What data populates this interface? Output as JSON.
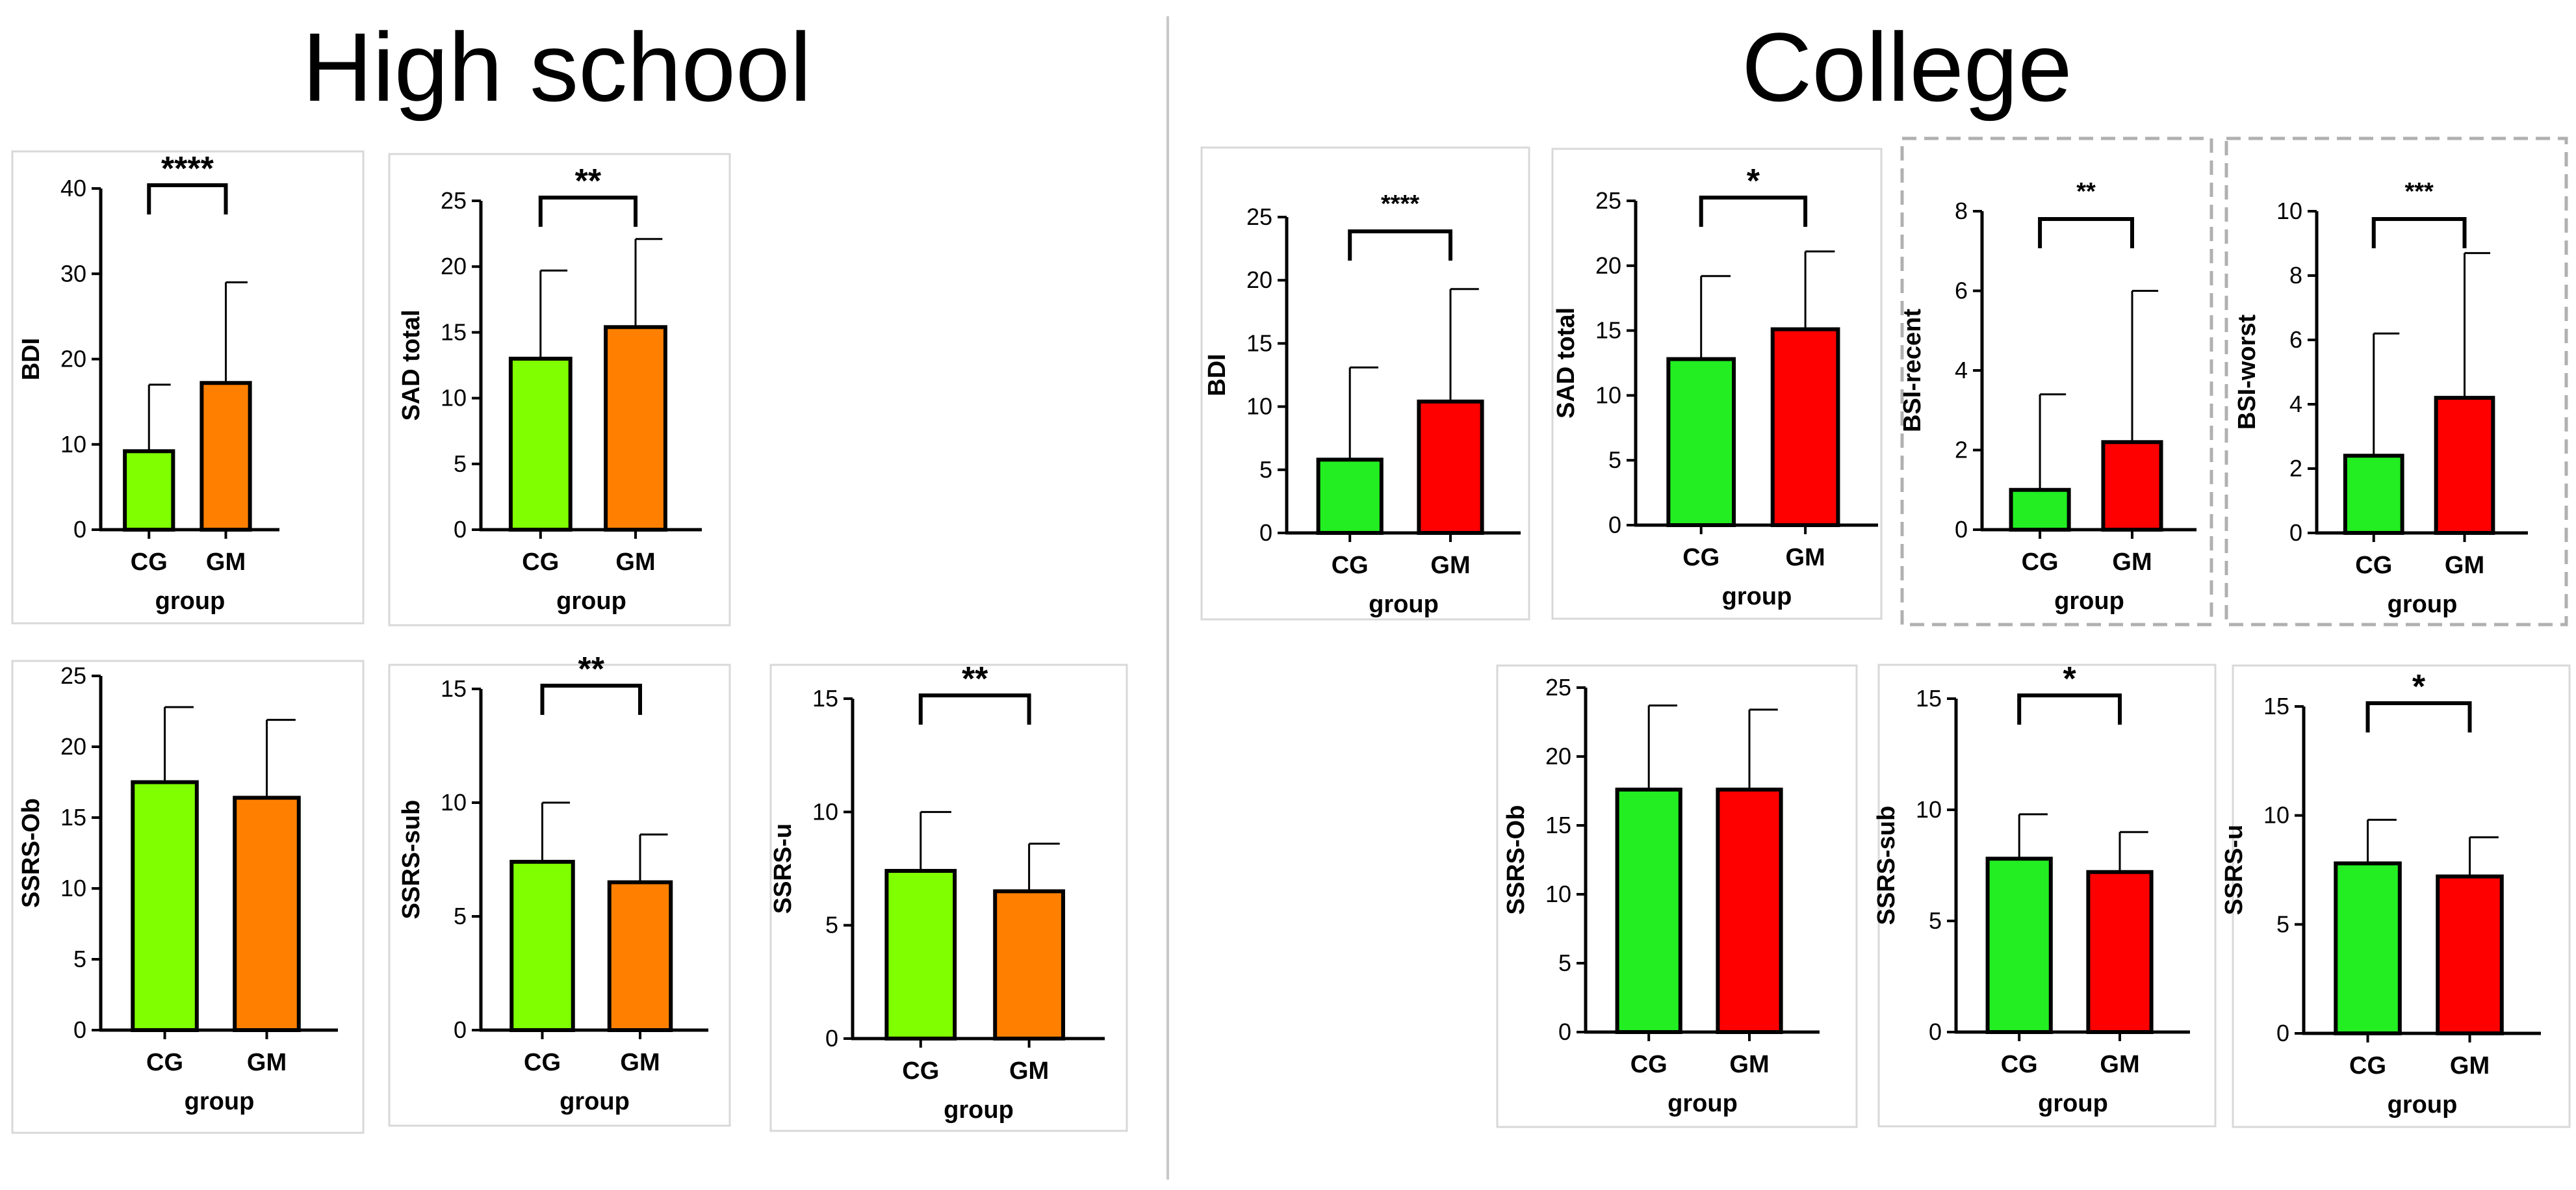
{
  "titles": {
    "left": "High school",
    "right": "College"
  },
  "colors": {
    "cg_hs": "#80ff00",
    "gm_hs": "#ff8000",
    "cg_col": "#22ee22",
    "gm_col": "#ff0000",
    "axis": "#000000"
  },
  "chart_data": [
    {
      "id": "hs-bdi",
      "type": "bar",
      "section": "High school",
      "categories": [
        "CG",
        "GM"
      ],
      "values": [
        9.2,
        17.2
      ],
      "errors": [
        17.0,
        29.0
      ],
      "ylabel": "BDI",
      "xlabel": "group",
      "ylim": [
        0,
        40
      ],
      "yticks": [
        0,
        10,
        20,
        30,
        40
      ],
      "significance": "****",
      "colors": [
        "#80ff00",
        "#ff8000"
      ]
    },
    {
      "id": "hs-sad",
      "type": "bar",
      "section": "High school",
      "categories": [
        "CG",
        "GM"
      ],
      "values": [
        13.0,
        15.4
      ],
      "errors": [
        19.7,
        22.1
      ],
      "ylabel": "SAD total",
      "xlabel": "group",
      "ylim": [
        0,
        25
      ],
      "yticks": [
        0,
        5,
        10,
        15,
        20,
        25
      ],
      "significance": "**",
      "colors": [
        "#80ff00",
        "#ff8000"
      ]
    },
    {
      "id": "hs-ssrs-ob",
      "type": "bar",
      "section": "High school",
      "categories": [
        "CG",
        "GM"
      ],
      "values": [
        17.5,
        16.4
      ],
      "errors": [
        22.8,
        21.9
      ],
      "ylabel": "SSRS-Ob",
      "xlabel": "group",
      "ylim": [
        0,
        25
      ],
      "yticks": [
        0,
        5,
        10,
        15,
        20,
        25
      ],
      "significance": "",
      "colors": [
        "#80ff00",
        "#ff8000"
      ]
    },
    {
      "id": "hs-ssrs-sub",
      "type": "bar",
      "section": "High school",
      "categories": [
        "CG",
        "GM"
      ],
      "values": [
        7.4,
        6.5
      ],
      "errors": [
        10.0,
        8.6
      ],
      "ylabel": "SSRS-sub",
      "xlabel": "group",
      "ylim": [
        0,
        15
      ],
      "yticks": [
        0,
        5,
        10,
        15
      ],
      "significance": "**",
      "colors": [
        "#80ff00",
        "#ff8000"
      ]
    },
    {
      "id": "hs-ssrs-u",
      "type": "bar",
      "section": "High school",
      "categories": [
        "CG",
        "GM"
      ],
      "values": [
        7.4,
        6.5
      ],
      "errors": [
        10.0,
        8.6
      ],
      "ylabel": "SSRS-u",
      "xlabel": "group",
      "ylim": [
        0,
        15
      ],
      "yticks": [
        0,
        5,
        10,
        15
      ],
      "significance": "**",
      "colors": [
        "#80ff00",
        "#ff8000"
      ]
    },
    {
      "id": "col-bdi",
      "type": "bar",
      "section": "College",
      "categories": [
        "CG",
        "GM"
      ],
      "values": [
        5.8,
        10.4
      ],
      "errors": [
        13.1,
        19.3
      ],
      "ylabel": "BDI",
      "xlabel": "group",
      "ylim": [
        0,
        25
      ],
      "yticks": [
        0,
        5,
        10,
        15,
        20,
        25
      ],
      "significance": "****",
      "colors": [
        "#22ee22",
        "#ff0000"
      ]
    },
    {
      "id": "col-sad",
      "type": "bar",
      "section": "College",
      "categories": [
        "CG",
        "GM"
      ],
      "values": [
        12.8,
        15.1
      ],
      "errors": [
        19.2,
        21.1
      ],
      "ylabel": "SAD total",
      "xlabel": "group",
      "ylim": [
        0,
        25
      ],
      "yticks": [
        0,
        5,
        10,
        15,
        20,
        25
      ],
      "significance": "*",
      "colors": [
        "#22ee22",
        "#ff0000"
      ]
    },
    {
      "id": "col-bsi-recent",
      "type": "bar",
      "section": "College",
      "categories": [
        "CG",
        "GM"
      ],
      "values": [
        1.0,
        2.2
      ],
      "errors": [
        3.4,
        6.0
      ],
      "ylabel": "BSI-recent",
      "xlabel": "group",
      "ylim": [
        0,
        8
      ],
      "yticks": [
        0,
        2,
        4,
        6,
        8
      ],
      "significance": "**",
      "colors": [
        "#22ee22",
        "#ff0000"
      ]
    },
    {
      "id": "col-bsi-worst",
      "type": "bar",
      "section": "College",
      "categories": [
        "CG",
        "GM"
      ],
      "values": [
        2.4,
        4.2
      ],
      "errors": [
        6.2,
        8.7
      ],
      "ylabel": "BSI-worst",
      "xlabel": "group",
      "ylim": [
        0,
        10
      ],
      "yticks": [
        0,
        2,
        4,
        6,
        8,
        10
      ],
      "significance": "***",
      "colors": [
        "#22ee22",
        "#ff0000"
      ]
    },
    {
      "id": "col-ssrs-ob",
      "type": "bar",
      "section": "College",
      "categories": [
        "CG",
        "GM"
      ],
      "values": [
        17.6,
        17.6
      ],
      "errors": [
        23.7,
        23.4
      ],
      "ylabel": "SSRS-Ob",
      "xlabel": "group",
      "ylim": [
        0,
        25
      ],
      "yticks": [
        0,
        5,
        10,
        15,
        20,
        25
      ],
      "significance": "",
      "colors": [
        "#22ee22",
        "#ff0000"
      ]
    },
    {
      "id": "col-ssrs-sub",
      "type": "bar",
      "section": "College",
      "categories": [
        "CG",
        "GM"
      ],
      "values": [
        7.8,
        7.2
      ],
      "errors": [
        9.8,
        9.0
      ],
      "ylabel": "SSRS-sub",
      "xlabel": "group",
      "ylim": [
        0,
        15
      ],
      "yticks": [
        0,
        5,
        10,
        15
      ],
      "significance": "*",
      "colors": [
        "#22ee22",
        "#ff0000"
      ]
    },
    {
      "id": "col-ssrs-u",
      "type": "bar",
      "section": "College",
      "categories": [
        "CG",
        "GM"
      ],
      "values": [
        7.8,
        7.2
      ],
      "errors": [
        9.8,
        9.0
      ],
      "ylabel": "SSRS-u",
      "xlabel": "group",
      "ylim": [
        0,
        15
      ],
      "yticks": [
        0,
        5,
        10,
        15
      ],
      "significance": "*",
      "colors": [
        "#22ee22",
        "#ff0000"
      ]
    }
  ]
}
